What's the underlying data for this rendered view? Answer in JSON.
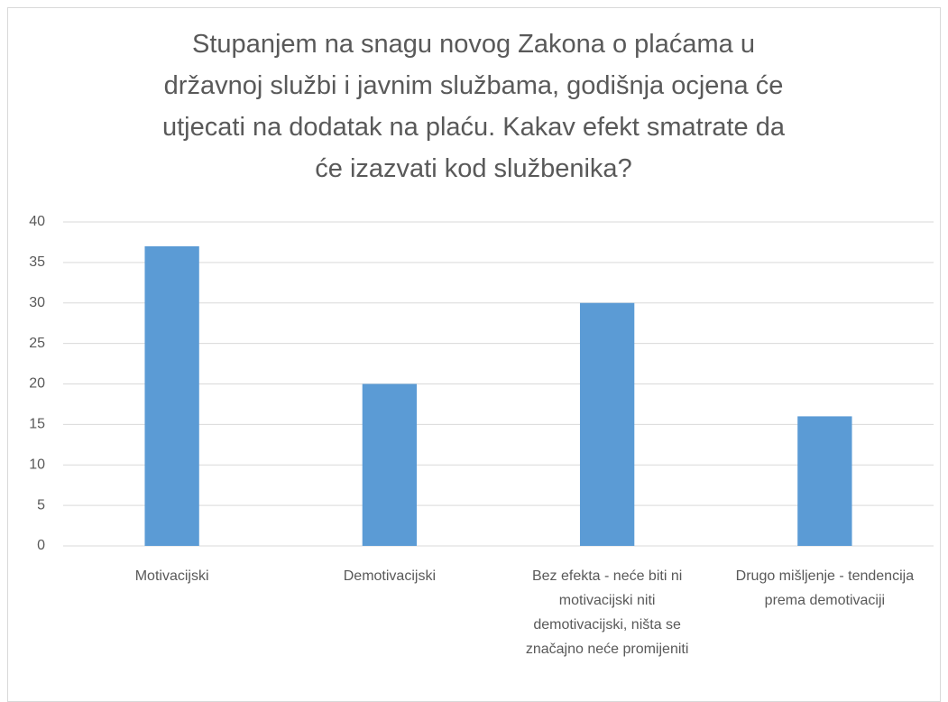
{
  "chart_data": {
    "type": "bar",
    "title": "Stupanjem na snagu novog Zakona o plaćama u državnoj službi i javnim službama, godišnja ocjena će utjecati na dodatak na plaću. Kakav efekt smatrate da će izazvati kod službenika?",
    "categories": [
      "Motivacijski",
      "Demotivacijski",
      "Bez efekta - neće biti ni motivacijski niti demotivacijski, ništa se značajno neće promijeniti",
      "Drugo mišljenje - tendencija prema demotivaciji"
    ],
    "values": [
      37,
      20,
      30,
      16
    ],
    "color": "#5b9bd5",
    "ylim": [
      0,
      40
    ],
    "yticks": [
      0,
      5,
      10,
      15,
      20,
      25,
      30,
      35,
      40
    ],
    "grid": true
  }
}
